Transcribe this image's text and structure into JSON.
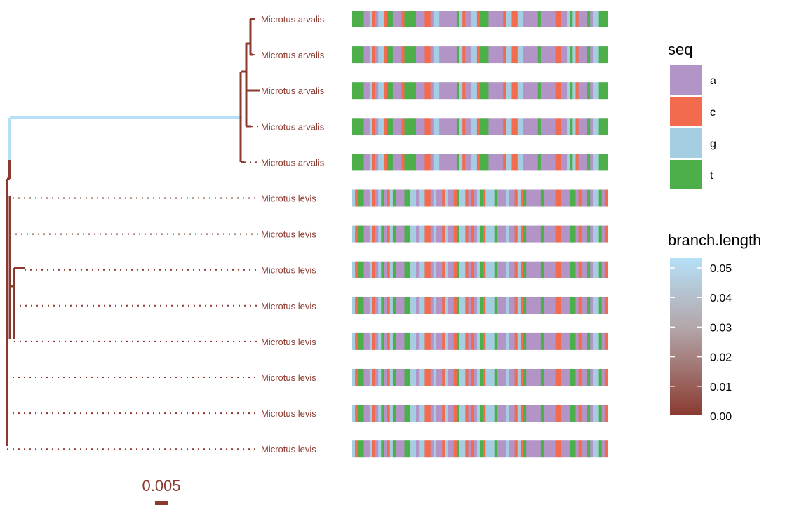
{
  "tips": [
    {
      "label": "Microtus arvalis",
      "group": "arvalis"
    },
    {
      "label": "Microtus arvalis",
      "group": "arvalis"
    },
    {
      "label": "Microtus arvalis",
      "group": "arvalis"
    },
    {
      "label": "Microtus arvalis",
      "group": "arvalis"
    },
    {
      "label": "Microtus arvalis",
      "group": "arvalis"
    },
    {
      "label": "Microtus levis",
      "group": "levis"
    },
    {
      "label": "Microtus levis",
      "group": "levis"
    },
    {
      "label": "Microtus levis",
      "group": "levis"
    },
    {
      "label": "Microtus levis",
      "group": "levis"
    },
    {
      "label": "Microtus levis",
      "group": "levis"
    },
    {
      "label": "Microtus levis",
      "group": "levis"
    },
    {
      "label": "Microtus levis",
      "group": "levis"
    },
    {
      "label": "Microtus levis",
      "group": "levis"
    }
  ],
  "alignment": {
    "arvalis": "ttttaagcaggcttaaacttttaaaccaggaaaaaatgcaaggctttaaaaacggccggaaaaataaaaaccaagtgcaaataggttt",
    "levis": "gcttaagcagtacgtaaattggaggccagaacgaactggcacagtcgggtaaagaacgctaaaaataaaaccaaattacaataggtac"
  },
  "seq_legend": {
    "title": "seq",
    "items": [
      {
        "key": "a",
        "color": "#b294c7"
      },
      {
        "key": "c",
        "color": "#f26b4f"
      },
      {
        "key": "g",
        "color": "#a6cee3"
      },
      {
        "key": "t",
        "color": "#4daf4a"
      }
    ]
  },
  "branch_legend": {
    "title": "branch.length",
    "ticks": [
      "0.05",
      "0.04",
      "0.03",
      "0.02",
      "0.01",
      "0.00"
    ],
    "low_color": "#8b3a30",
    "mid_color": "#b3a5a8",
    "high_color": "#b5e0f7"
  },
  "scale": {
    "label": "0.005"
  },
  "colors": {
    "branch_low": "#8b3a30",
    "branch_high": "#b5e0f7",
    "dotted": "#8b3a30"
  }
}
